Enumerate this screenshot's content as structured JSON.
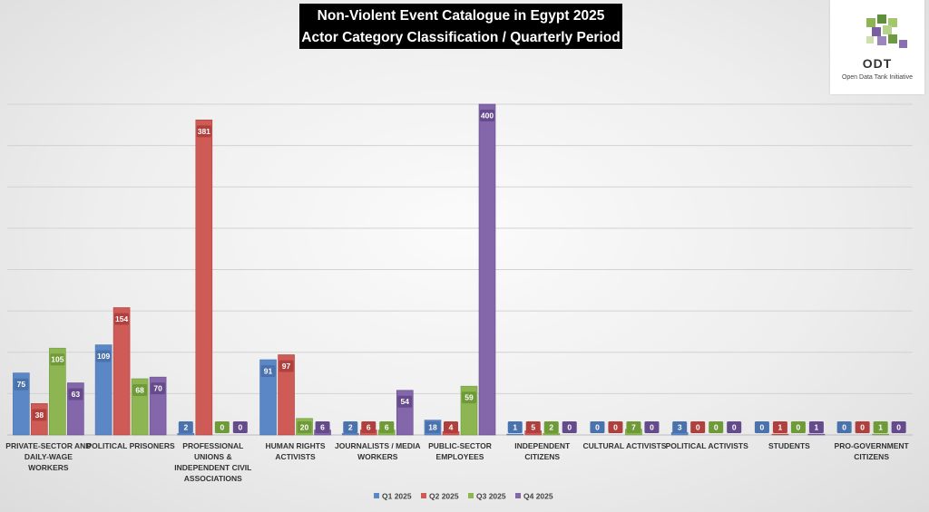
{
  "header": {
    "title_line1": "Non-Violent Event Catalogue in Egypt 2025",
    "title_line2": "Actor Category Classification / Quarterly Period"
  },
  "logo": {
    "name": "ODT",
    "subtitle": "Open Data Tank Initiative"
  },
  "chart_data": {
    "type": "bar",
    "title": "Non-Violent Event Catalogue in Egypt 2025 — Actor Category Classification / Quarterly Period",
    "ylim": [
      0,
      400
    ],
    "grid": true,
    "legend": "bottom-center",
    "categories": [
      [
        "PRIVATE-SECTOR AND",
        "DAILY-WAGE",
        "WORKERS"
      ],
      [
        "POLITICAL PRISONERS"
      ],
      [
        "PROFESSIONAL",
        "UNIONS &",
        "INDEPENDENT CIVIL",
        "ASSOCIATIONS"
      ],
      [
        "HUMAN RIGHTS",
        "ACTIVISTS"
      ],
      [
        "JOURNALISTS / MEDIA",
        "WORKERS"
      ],
      [
        "PUBLIC-SECTOR",
        "EMPLOYEES"
      ],
      [
        "INDEPENDENT",
        "CITIZENS"
      ],
      [
        "CULTURAL ACTIVISTS"
      ],
      [
        "POLITICAL ACTIVISTS"
      ],
      [
        "STUDENTS"
      ],
      [
        "PRO-GOVERNMENT",
        "CITIZENS"
      ]
    ],
    "series": [
      {
        "name": "Q1 2025",
        "color": "#5b87c6",
        "dark": "#4a72ad",
        "values": [
          75,
          109,
          2,
          91,
          2,
          18,
          1,
          0,
          3,
          0,
          0
        ]
      },
      {
        "name": "Q2 2025",
        "color": "#cf5b57",
        "dark": "#b0403d",
        "values": [
          38,
          154,
          381,
          97,
          6,
          4,
          5,
          0,
          0,
          1,
          0
        ]
      },
      {
        "name": "Q3 2025",
        "color": "#8db652",
        "dark": "#6f9a38",
        "values": [
          105,
          68,
          0,
          20,
          6,
          59,
          2,
          7,
          0,
          0,
          1
        ]
      },
      {
        "name": "Q4 2025",
        "color": "#8467aa",
        "dark": "#654b8c",
        "values": [
          63,
          70,
          0,
          6,
          54,
          400,
          0,
          0,
          0,
          1,
          0
        ]
      }
    ]
  }
}
